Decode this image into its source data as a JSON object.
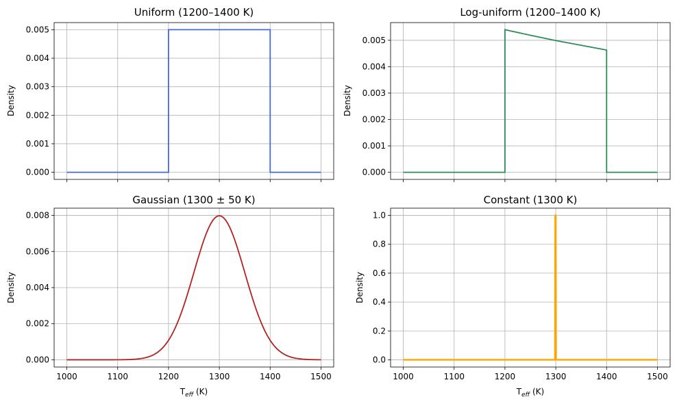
{
  "chart_data": [
    {
      "id": "uniform",
      "type": "line",
      "title": "Uniform (1200–1400 K)",
      "ylabel": "Density",
      "xlabel": "",
      "xlim": [
        975,
        1525
      ],
      "ylim": [
        -0.00025,
        0.00525
      ],
      "xticks": [
        1000,
        1100,
        1200,
        1300,
        1400,
        1500
      ],
      "xtick_labels_shown": false,
      "yticks": [
        0.0,
        0.001,
        0.002,
        0.003,
        0.004,
        0.005
      ],
      "ytick_labels": [
        "0.000",
        "0.001",
        "0.002",
        "0.003",
        "0.004",
        "0.005"
      ],
      "grid": true,
      "color": "#4169e1",
      "line_width": 1.8,
      "series": [
        {
          "x": [
            1000,
            1200,
            1200,
            1400,
            1400,
            1500
          ],
          "y": [
            0,
            0,
            0.005,
            0.005,
            0,
            0
          ]
        }
      ]
    },
    {
      "id": "log-uniform",
      "type": "line",
      "title": "Log-uniform (1200–1400 K)",
      "ylabel": "Density",
      "xlabel": "",
      "xlim": [
        975,
        1525
      ],
      "ylim": [
        -0.00027,
        0.00567
      ],
      "xticks": [
        1000,
        1100,
        1200,
        1300,
        1400,
        1500
      ],
      "xtick_labels_shown": false,
      "yticks": [
        0.0,
        0.001,
        0.002,
        0.003,
        0.004,
        0.005
      ],
      "ytick_labels": [
        "0.000",
        "0.001",
        "0.002",
        "0.003",
        "0.004",
        "0.005"
      ],
      "grid": true,
      "color": "#2e8b57",
      "line_width": 1.8,
      "series": [
        {
          "x": [
            1000,
            1200,
            1200,
            1250,
            1300,
            1350,
            1400,
            1400,
            1500
          ],
          "y": [
            0,
            0,
            0.0054,
            0.00519,
            0.00499,
            0.00481,
            0.00463,
            0,
            0
          ]
        }
      ]
    },
    {
      "id": "gaussian",
      "type": "line",
      "title": "Gaussian (1300 ± 50 K)",
      "ylabel": "Density",
      "xlabel": "T_eff (K)",
      "xlim": [
        975,
        1525
      ],
      "ylim": [
        -0.0004,
        0.0084
      ],
      "xticks": [
        1000,
        1100,
        1200,
        1300,
        1400,
        1500
      ],
      "xtick_labels": [
        "1000",
        "1100",
        "1200",
        "1300",
        "1400",
        "1500"
      ],
      "xtick_labels_shown": true,
      "yticks": [
        0.0,
        0.002,
        0.004,
        0.006,
        0.008
      ],
      "ytick_labels": [
        "0.000",
        "0.002",
        "0.004",
        "0.006",
        "0.008"
      ],
      "grid": true,
      "color": "#b22222",
      "line_width": 1.8,
      "gaussian": {
        "mean": 1300,
        "sigma": 50,
        "x_from": 1000,
        "x_to": 1500,
        "samples": 251
      }
    },
    {
      "id": "constant",
      "type": "line",
      "title": "Constant (1300 K)",
      "ylabel": "Density",
      "xlabel": "T_eff (K)",
      "xlim": [
        975,
        1525
      ],
      "ylim": [
        -0.05,
        1.05
      ],
      "xticks": [
        1000,
        1100,
        1200,
        1300,
        1400,
        1500
      ],
      "xtick_labels": [
        "1000",
        "1100",
        "1200",
        "1300",
        "1400",
        "1500"
      ],
      "xtick_labels_shown": true,
      "yticks": [
        0.0,
        0.2,
        0.4,
        0.6,
        0.8,
        1.0
      ],
      "ytick_labels": [
        "0.0",
        "0.2",
        "0.4",
        "0.6",
        "0.8",
        "1.0"
      ],
      "grid": true,
      "color": "#ffa500",
      "line_width": 2.4,
      "series": [
        {
          "x": [
            1000,
            1298.5,
            1299,
            1300,
            1300.5,
            1301,
            1500
          ],
          "y": [
            0,
            0,
            1,
            1,
            0,
            0,
            0
          ]
        }
      ]
    }
  ]
}
